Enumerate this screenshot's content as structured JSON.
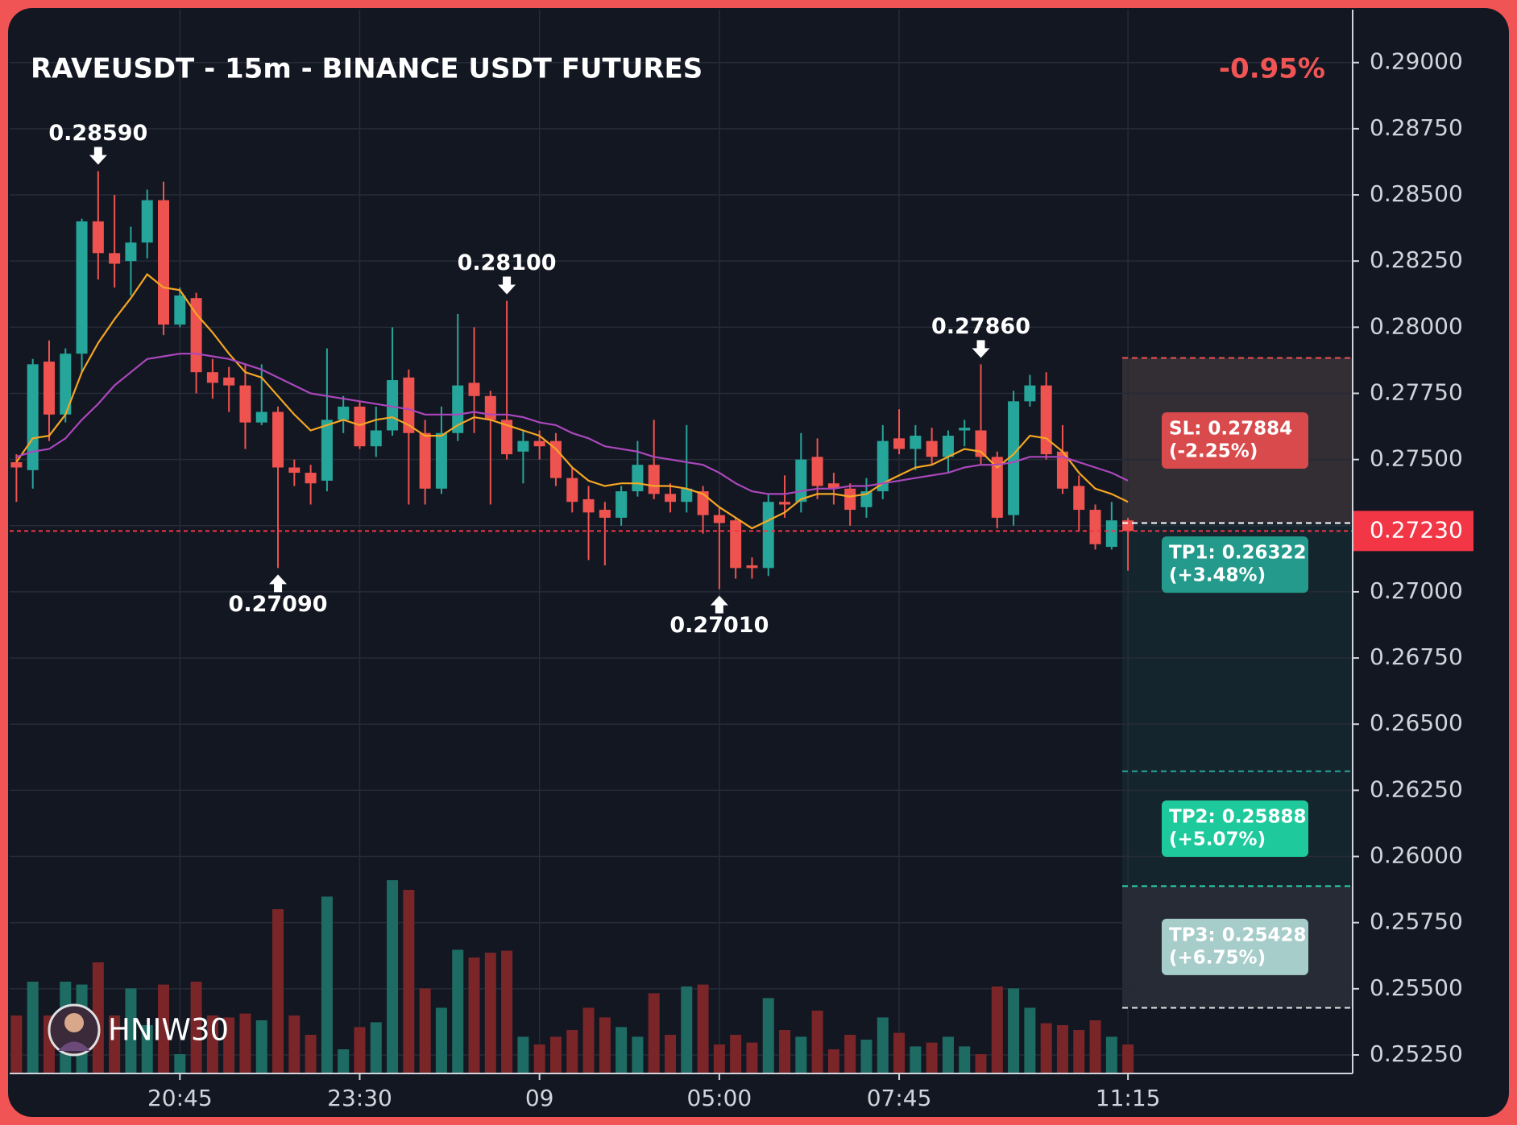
{
  "chart_data": {
    "type": "candlestick",
    "title": "RAVEUSDT - 15m - BINANCE USDT FUTURES",
    "change": "-0.95%",
    "watermark": "HNIW30",
    "categories": [
      null,
      null,
      null,
      null,
      null,
      null,
      null,
      null,
      null,
      null,
      "20:45",
      null,
      null,
      null,
      null,
      null,
      null,
      null,
      null,
      null,
      null,
      "23:30",
      null,
      null,
      null,
      null,
      null,
      null,
      null,
      null,
      null,
      null,
      "09",
      null,
      null,
      null,
      null,
      null,
      null,
      null,
      null,
      null,
      null,
      "05:00",
      null,
      null,
      null,
      null,
      null,
      null,
      null,
      null,
      null,
      null,
      "07:45",
      null,
      null,
      null,
      null,
      null,
      null,
      null,
      null,
      null,
      null,
      null,
      null,
      null,
      "11:15"
    ],
    "open": [
      0.2749,
      0.2746,
      0.2787,
      0.2767,
      0.279,
      0.284,
      0.2828,
      0.2825,
      0.2832,
      0.2848,
      0.2801,
      0.2811,
      0.2783,
      0.2781,
      0.2778,
      0.2764,
      0.2768,
      0.2747,
      0.2745,
      0.2742,
      0.2765,
      0.277,
      0.2755,
      0.2761,
      0.2781,
      0.276,
      0.2739,
      0.276,
      0.2779,
      0.2774,
      0.2765,
      0.2753,
      0.2757,
      0.2757,
      0.2743,
      0.2735,
      0.2731,
      0.2728,
      0.2738,
      0.2748,
      0.2737,
      0.2734,
      0.2738,
      0.2729,
      0.2727,
      0.271,
      0.2709,
      0.2734,
      0.2734,
      0.2751,
      0.2741,
      0.2739,
      0.2732,
      0.2738,
      0.2758,
      0.2754,
      0.2757,
      0.2751,
      0.2761,
      0.2761,
      0.2751,
      0.2729,
      0.2772,
      0.2778,
      0.2753,
      0.274,
      0.2731,
      0.2717,
      0.2727
    ],
    "high": [
      0.2752,
      0.2788,
      0.2795,
      0.2792,
      0.2841,
      0.2859,
      0.285,
      0.2838,
      0.2852,
      0.2855,
      0.2815,
      0.2813,
      0.2788,
      0.2785,
      0.2786,
      0.2786,
      0.277,
      0.275,
      0.2748,
      0.2792,
      0.2774,
      0.2772,
      0.277,
      0.28,
      0.2784,
      0.2765,
      0.277,
      0.2805,
      0.28,
      0.2776,
      0.281,
      0.2761,
      0.2761,
      0.276,
      0.2747,
      0.274,
      0.2734,
      0.274,
      0.2757,
      0.2765,
      0.2741,
      0.2763,
      0.274,
      0.2732,
      0.2728,
      0.2713,
      0.2737,
      0.2744,
      0.276,
      0.2758,
      0.2745,
      0.2741,
      0.2743,
      0.2763,
      0.2769,
      0.2763,
      0.2762,
      0.2761,
      0.2765,
      0.2786,
      0.2753,
      0.2776,
      0.2782,
      0.2783,
      0.2763,
      0.2744,
      0.2733,
      0.2734,
      0.2728
    ],
    "low": [
      0.2734,
      0.2739,
      0.2757,
      0.2764,
      0.2783,
      0.2818,
      0.2815,
      0.2812,
      0.2826,
      0.2797,
      0.28,
      0.2775,
      0.2773,
      0.2768,
      0.2754,
      0.2763,
      0.2709,
      0.274,
      0.2733,
      0.2738,
      0.276,
      0.2754,
      0.2751,
      0.2759,
      0.2733,
      0.2733,
      0.2737,
      0.2757,
      0.276,
      0.2733,
      0.275,
      0.2741,
      0.275,
      0.274,
      0.273,
      0.2712,
      0.271,
      0.2725,
      0.2736,
      0.2735,
      0.273,
      0.273,
      0.2722,
      0.2701,
      0.2705,
      0.2705,
      0.2706,
      0.2728,
      0.273,
      0.2735,
      0.2733,
      0.2725,
      0.2728,
      0.2735,
      0.2752,
      0.2746,
      0.2748,
      0.2745,
      0.2755,
      0.2748,
      0.2724,
      0.2725,
      0.277,
      0.275,
      0.2737,
      0.2723,
      0.2716,
      0.2716,
      0.2708
    ],
    "close": [
      0.2747,
      0.2786,
      0.2767,
      0.279,
      0.284,
      0.2828,
      0.2824,
      0.2832,
      0.2848,
      0.2801,
      0.2812,
      0.2783,
      0.2779,
      0.2778,
      0.2764,
      0.2768,
      0.2747,
      0.2745,
      0.2741,
      0.2765,
      0.277,
      0.2755,
      0.2761,
      0.278,
      0.276,
      0.2739,
      0.276,
      0.2778,
      0.2774,
      0.2765,
      0.2752,
      0.2757,
      0.2755,
      0.2743,
      0.2734,
      0.273,
      0.2728,
      0.2738,
      0.2748,
      0.2737,
      0.2734,
      0.2739,
      0.2729,
      0.2726,
      0.2709,
      0.2709,
      0.2734,
      0.2733,
      0.275,
      0.274,
      0.2739,
      0.2731,
      0.2738,
      0.2757,
      0.2754,
      0.2759,
      0.2751,
      0.2759,
      0.2762,
      0.2751,
      0.2728,
      0.2772,
      0.2778,
      0.2752,
      0.2739,
      0.2731,
      0.2718,
      0.2727,
      0.2723
    ],
    "volume": [
      60,
      95,
      60,
      95,
      92,
      115,
      60,
      88,
      50,
      92,
      20,
      95,
      60,
      58,
      62,
      55,
      170,
      60,
      40,
      183,
      25,
      48,
      53,
      200,
      190,
      88,
      68,
      128,
      120,
      125,
      127,
      38,
      30,
      38,
      45,
      68,
      58,
      48,
      38,
      83,
      40,
      90,
      92,
      30,
      40,
      32,
      78,
      45,
      38,
      65,
      25,
      40,
      35,
      58,
      42,
      28,
      32,
      38,
      28,
      20,
      90,
      88,
      68,
      52,
      50,
      45,
      55,
      38,
      30
    ],
    "up_color": "#26a69a",
    "down_color": "#ef5350",
    "volume_up_color": "#1e6b63",
    "volume_down_color": "#7a2528",
    "lines": [
      {
        "color": "#f5a623",
        "values": [
          0.2749,
          0.2758,
          0.2759,
          0.2767,
          0.2783,
          0.2794,
          0.2803,
          0.2811,
          0.282,
          0.2815,
          0.2814,
          0.2805,
          0.2798,
          0.279,
          0.2783,
          0.2781,
          0.2774,
          0.2767,
          0.2761,
          0.2763,
          0.2765,
          0.2763,
          0.2765,
          0.2766,
          0.2763,
          0.2759,
          0.2759,
          0.2763,
          0.2766,
          0.2765,
          0.2763,
          0.2761,
          0.2759,
          0.2754,
          0.2747,
          0.2742,
          0.274,
          0.2741,
          0.2741,
          0.274,
          0.274,
          0.2739,
          0.2737,
          0.2732,
          0.2728,
          0.2724,
          0.2727,
          0.273,
          0.2735,
          0.2737,
          0.2737,
          0.2736,
          0.2737,
          0.2741,
          0.2744,
          0.2747,
          0.2748,
          0.2751,
          0.2754,
          0.2753,
          0.2747,
          0.2752,
          0.2759,
          0.2758,
          0.2753,
          0.2745,
          0.2739,
          0.2737,
          0.2734
        ]
      },
      {
        "color": "#ab47bc",
        "values": [
          0.2751,
          0.2753,
          0.2754,
          0.2758,
          0.2765,
          0.2771,
          0.2778,
          0.2783,
          0.2788,
          0.2789,
          0.279,
          0.279,
          0.2789,
          0.2788,
          0.2786,
          0.2784,
          0.2781,
          0.2778,
          0.2775,
          0.2774,
          0.2773,
          0.2772,
          0.2771,
          0.277,
          0.2769,
          0.2767,
          0.2767,
          0.2767,
          0.2768,
          0.2767,
          0.2767,
          0.2766,
          0.2764,
          0.2763,
          0.276,
          0.2758,
          0.2755,
          0.2754,
          0.2753,
          0.2751,
          0.275,
          0.2749,
          0.2748,
          0.2745,
          0.2741,
          0.2738,
          0.2737,
          0.2737,
          0.2738,
          0.2739,
          0.2739,
          0.274,
          0.274,
          0.2741,
          0.2742,
          0.2743,
          0.2744,
          0.2745,
          0.2747,
          0.2748,
          0.2748,
          0.2749,
          0.2751,
          0.2751,
          0.2751,
          0.2749,
          0.2747,
          0.2745,
          0.2742
        ]
      }
    ],
    "ylim": [
      0.2518,
      0.292
    ],
    "yticks": [
      {
        "value": 0.29,
        "label": "0.29000"
      },
      {
        "value": 0.2875,
        "label": "0.28750"
      },
      {
        "value": 0.285,
        "label": "0.28500"
      },
      {
        "value": 0.2825,
        "label": "0.28250"
      },
      {
        "value": 0.28,
        "label": "0.28000"
      },
      {
        "value": 0.2775,
        "label": "0.27750"
      },
      {
        "value": 0.275,
        "label": "0.27500"
      },
      {
        "value": 0.2725,
        "label": "0.27250"
      },
      {
        "value": 0.27,
        "label": "0.27000"
      },
      {
        "value": 0.2675,
        "label": "0.26750"
      },
      {
        "value": 0.265,
        "label": "0.26500"
      },
      {
        "value": 0.2625,
        "label": "0.26250"
      },
      {
        "value": 0.26,
        "label": "0.26000"
      },
      {
        "value": 0.2575,
        "label": "0.25750"
      },
      {
        "value": 0.255,
        "label": "0.25500"
      },
      {
        "value": 0.2525,
        "label": "0.25250"
      }
    ],
    "grid": true,
    "annotations": [
      {
        "value": 0.2859,
        "label": "0.28590",
        "index": 5,
        "side": "high"
      },
      {
        "value": 0.281,
        "label": "0.28100",
        "index": 30,
        "side": "high"
      },
      {
        "value": 0.2786,
        "label": "0.27860",
        "index": 59,
        "side": "high"
      },
      {
        "value": 0.2709,
        "label": "0.27090",
        "index": 16,
        "side": "low"
      },
      {
        "value": 0.2701,
        "label": "0.27010",
        "index": 43,
        "side": "low"
      }
    ],
    "last_price": {
      "value": 0.2723,
      "label": "0.27230",
      "color": "#f23645"
    },
    "entry": 0.2726,
    "levels": [
      {
        "label": "SL: 0.27884",
        "change": "(-2.25%)",
        "value": 0.27884,
        "line_color": "#ef5350",
        "box_color": "#d94a4c",
        "zone_color": "rgba(239,83,80,0.16)"
      },
      {
        "label": "TP1: 0.26322",
        "change": "(+3.48%)",
        "value": 0.26322,
        "line_color": "#26a69a",
        "box_color": "#239a8b",
        "zone_color": "rgba(38,166,154,0.10)"
      },
      {
        "label": "TP2: 0.25888",
        "change": "(+5.07%)",
        "value": 0.25888,
        "line_color": "#2ed1a8",
        "box_color": "#1ec99c",
        "zone_color": "rgba(38,166,154,0.10)"
      },
      {
        "label": "TP3: 0.25428",
        "change": "(+6.75%)",
        "value": 0.25428,
        "line_color": "#e6e6e6",
        "box_color": "#a7cdca",
        "zone_color": "rgba(170,180,195,0.13)"
      }
    ]
  }
}
